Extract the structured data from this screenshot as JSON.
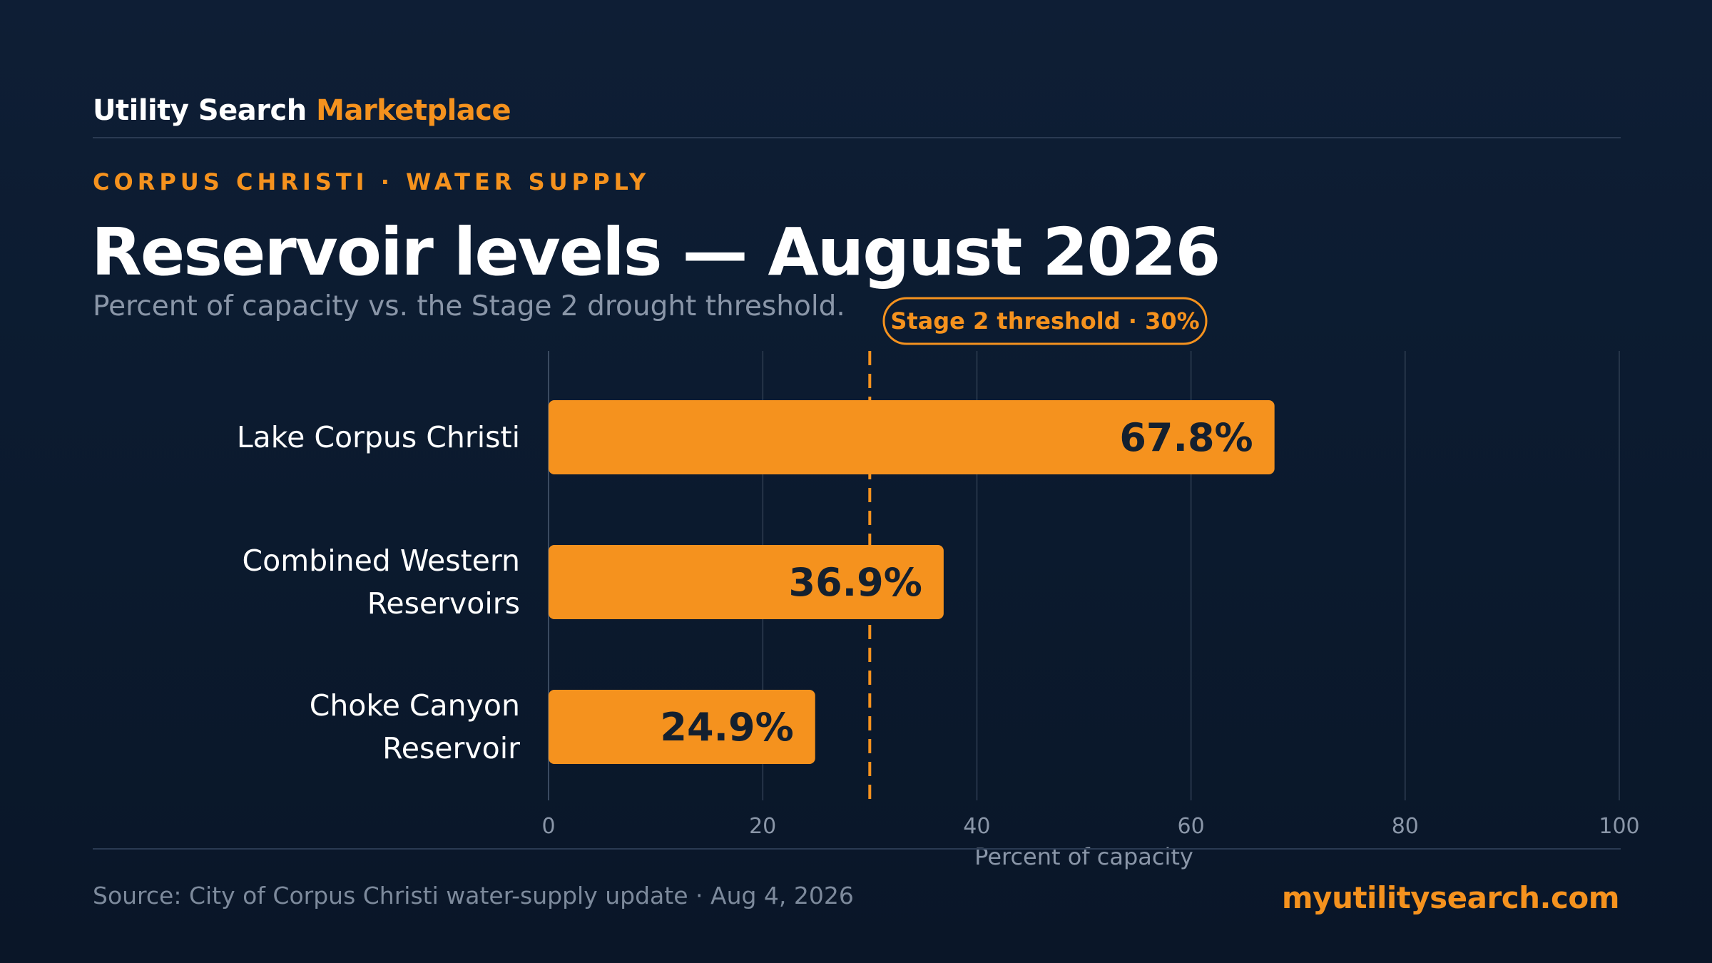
{
  "brand": {
    "first": "Utility Search",
    "second": "Marketplace"
  },
  "eyebrow": "CORPUS CHRISTI · WATER SUPPLY",
  "title": "Reservoir levels — August 2026",
  "subtitle": "Percent of capacity vs. the Stage 2 drought threshold.",
  "footer": {
    "source": "Source: City of Corpus Christi water-supply update · Aug 4, 2026",
    "site": "myutilitysearch.com"
  },
  "colors": {
    "accent": "#f5921e",
    "background": "#0c1b30",
    "grid": "#253448",
    "value_text": "#14202f"
  },
  "chart_data": {
    "type": "bar",
    "orientation": "horizontal",
    "categories": [
      [
        "Lake Corpus Christi"
      ],
      [
        "Combined Western",
        "Reservoirs"
      ],
      [
        "Choke Canyon",
        "Reservoir"
      ]
    ],
    "values": [
      67.8,
      36.9,
      24.9
    ],
    "value_labels": [
      "67.8%",
      "36.9%",
      "24.9%"
    ],
    "xlabel": "Percent of capacity",
    "xlim": [
      0,
      100
    ],
    "xticks": [
      0,
      20,
      40,
      60,
      80,
      100
    ],
    "grid": true,
    "threshold": {
      "value": 30,
      "label": "Stage 2 threshold · 30%"
    }
  }
}
